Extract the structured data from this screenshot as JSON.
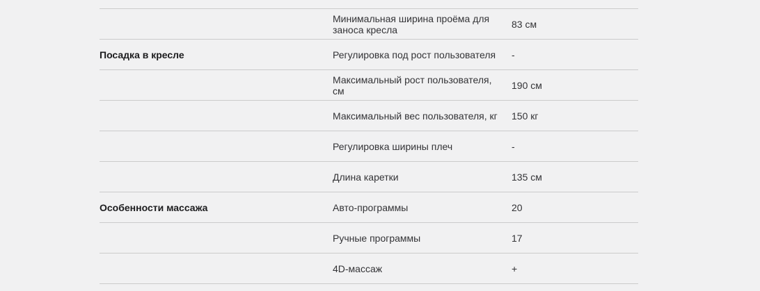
{
  "theme": {
    "background_color": "#f1f1f2",
    "divider_color": "#cbcbcb",
    "section_text_color": "#1c1c1e",
    "body_text_color": "#333336"
  },
  "spec_table": {
    "rows": [
      {
        "section": "",
        "parameter": "Минимальная ширина проёма для заноса кресла",
        "value": "83 см"
      },
      {
        "section": "Посадка в кресле",
        "parameter": "Регулировка под рост пользователя",
        "value": "-"
      },
      {
        "section": "",
        "parameter": "Максимальный рост пользователя, см",
        "value": "190 см"
      },
      {
        "section": "",
        "parameter": "Максимальный вес пользователя, кг",
        "value": "150 кг"
      },
      {
        "section": "",
        "parameter": "Регулировка ширины плеч",
        "value": "-"
      },
      {
        "section": "",
        "parameter": "Длина каретки",
        "value": "135 см"
      },
      {
        "section": "Особенности массажа",
        "parameter": "Авто-программы",
        "value": "20"
      },
      {
        "section": "",
        "parameter": "Ручные программы",
        "value": "17"
      },
      {
        "section": "",
        "parameter": "4D-массаж",
        "value": "+"
      }
    ]
  }
}
